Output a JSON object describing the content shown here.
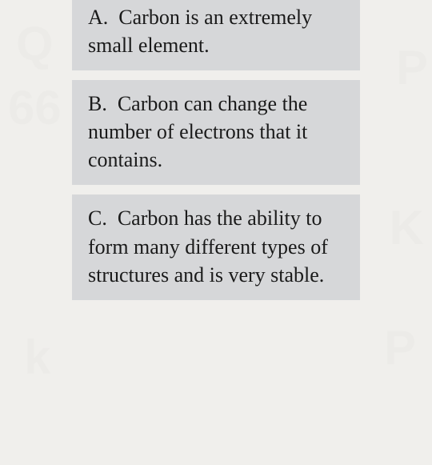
{
  "quiz": {
    "options": [
      {
        "letter": "A.",
        "text": "Carbon is an extremely small element."
      },
      {
        "letter": "B.",
        "text": "Carbon can change the number of electrons that it contains."
      },
      {
        "letter": "C.",
        "text": "Carbon has the ability to form many different types of structures and is very stable."
      }
    ],
    "styling": {
      "background_color": "#f0efec",
      "option_bg_color": "#d6d7d9",
      "text_color": "#1a1a1a",
      "font_family": "Georgia, serif",
      "font_size": 26,
      "container_width": 540,
      "container_height": 581,
      "option_gap": 12,
      "option_padding_horizontal": 20,
      "option_padding_vertical": 12,
      "side_margin": 90
    }
  }
}
